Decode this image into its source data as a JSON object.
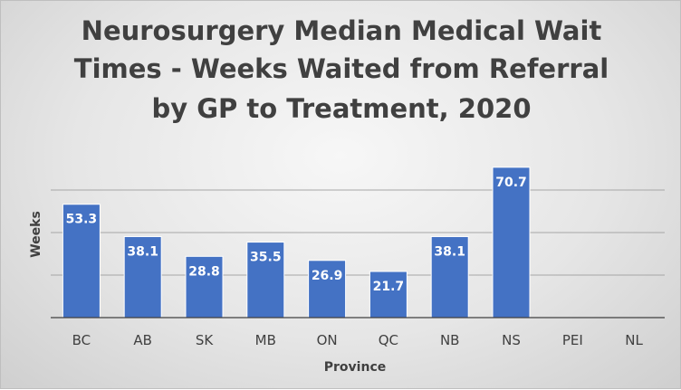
{
  "chart_data": {
    "type": "bar",
    "title_lines": [
      "Neurosurgery Median Medical Wait",
      "Times - Weeks Waited from Referral",
      "by GP to Treatment, 2020"
    ],
    "xlabel": "Province",
    "ylabel": "Weeks",
    "categories": [
      "BC",
      "AB",
      "SK",
      "MB",
      "ON",
      "QC",
      "NB",
      "NS",
      "PEI",
      "NL"
    ],
    "values": [
      53.3,
      38.1,
      28.8,
      35.5,
      26.9,
      21.7,
      38.1,
      70.7,
      null,
      null
    ],
    "value_labels": [
      "53.3",
      "38.1",
      "28.8",
      "35.5",
      "26.9",
      "21.7",
      "38.1",
      "70.7",
      "",
      ""
    ],
    "ylim": [
      0,
      80
    ],
    "gridlines": [
      20,
      40,
      60
    ],
    "grid": true,
    "legend": "none",
    "bar_color": "#4472C4"
  }
}
